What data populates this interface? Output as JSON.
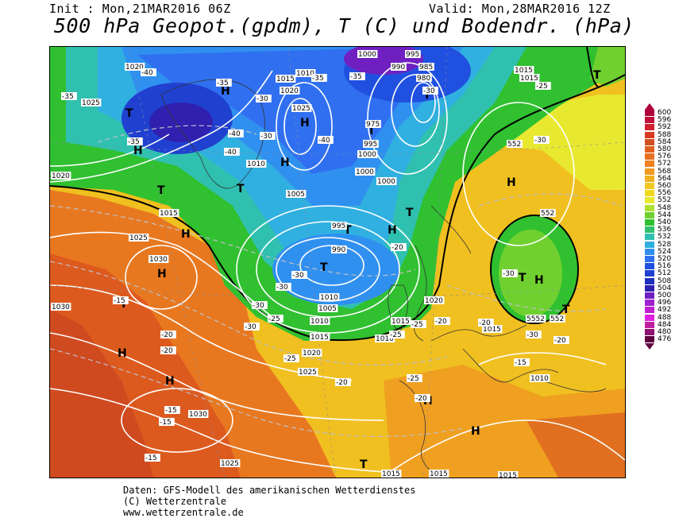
{
  "header": {
    "init": "Init : Mon,21MAR2016 06Z",
    "valid": "Valid: Mon,28MAR2016 12Z",
    "title": "500 hPa Geopot.(gpdm), T (C) und Bodendr. (hPa)"
  },
  "legend": {
    "values": [
      "600",
      "596",
      "592",
      "588",
      "584",
      "580",
      "576",
      "572",
      "568",
      "564",
      "560",
      "556",
      "552",
      "548",
      "544",
      "540",
      "536",
      "532",
      "528",
      "524",
      "520",
      "516",
      "512",
      "508",
      "504",
      "500",
      "496",
      "492",
      "488",
      "484",
      "480",
      "476"
    ],
    "colors": [
      "#b0003a",
      "#c0103a",
      "#d02030",
      "#d83820",
      "#d05020",
      "#e06020",
      "#e87020",
      "#f08020",
      "#f09820",
      "#f0b020",
      "#f0c820",
      "#f0d820",
      "#e8e830",
      "#b0e030",
      "#70d030",
      "#30c030",
      "#30c070",
      "#30c0b0",
      "#30b0e0",
      "#3090f0",
      "#3070f0",
      "#2050e0",
      "#2040d0",
      "#2030c0",
      "#3020b0",
      "#7020c0",
      "#a020d0",
      "#c020d0",
      "#e020e0",
      "#c020a0",
      "#901070",
      "#600040"
    ]
  },
  "map": {
    "highs": [
      "H",
      "H",
      "H",
      "H",
      "H",
      "H",
      "H",
      "H",
      "H",
      "H",
      "H",
      "H",
      "H"
    ],
    "lows": [
      "T",
      "T",
      "T",
      "T",
      "T",
      "T",
      "T",
      "T",
      "T",
      "T",
      "T",
      "T",
      "T"
    ],
    "pressure_labels": [
      "1020",
      "1025",
      "1015",
      "1010",
      "1020",
      "1025",
      "1000",
      "995",
      "990",
      "985",
      "980",
      "975",
      "1000",
      "995",
      "1000",
      "1005",
      "1010",
      "1015",
      "1020",
      "1030",
      "1030",
      "1025",
      "1015",
      "1010",
      "1015",
      "1020",
      "1025",
      "1010",
      "1015",
      "1015",
      "995",
      "990",
      "1010",
      "1005",
      "1000",
      "1010",
      "1015",
      "1020",
      "1030",
      "1015",
      "1025",
      "1015",
      "1015",
      "552",
      "552",
      "552",
      "5552"
    ],
    "temp_labels": [
      "-40",
      "-35",
      "-35",
      "-40",
      "-40",
      "-35",
      "-30",
      "-35",
      "-25",
      "-30",
      "-30",
      "-35",
      "-30",
      "-40",
      "-30",
      "-25",
      "-25",
      "-30",
      "-30",
      "-30",
      "-25",
      "-20",
      "-20",
      "-15",
      "-20",
      "-20",
      "-15",
      "-15",
      "-15",
      "-20",
      "-25",
      "-25",
      "-30",
      "-30",
      "-20",
      "-20",
      "-15",
      "-20"
    ]
  },
  "credits": {
    "line1": "Daten: GFS-Modell des amerikanischen Wetterdienstes",
    "line2": "(C) Wetterzentrale",
    "line3": "www.wetterzentrale.de"
  }
}
